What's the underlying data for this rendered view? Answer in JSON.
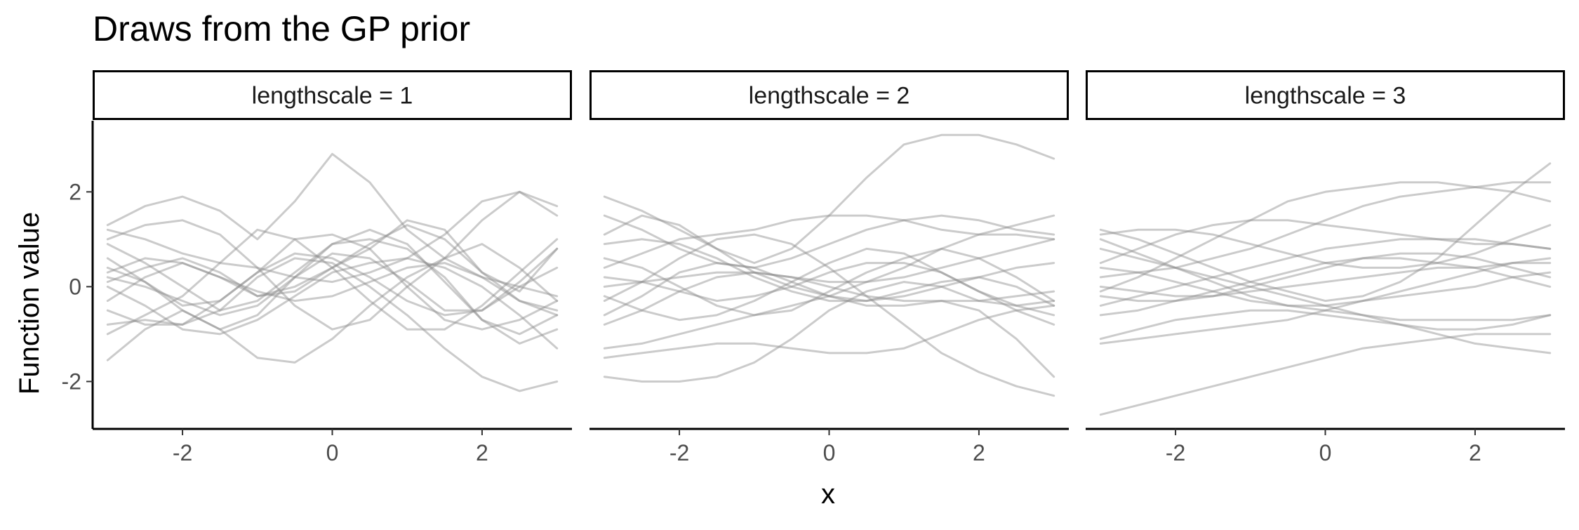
{
  "chart_data": {
    "type": "line",
    "title": "Draws from the GP prior",
    "xlabel": "x",
    "ylabel": "Function value",
    "xlim": [
      -3.2,
      3.2
    ],
    "ylim": [
      -3.0,
      3.5
    ],
    "x_ticks": [
      -2,
      0,
      2
    ],
    "y_ticks": [
      -2,
      0,
      2
    ],
    "line_color": "#8c8c8c",
    "line_opacity": 0.45,
    "grid": false,
    "legend": "none",
    "x": [
      -3,
      -2.5,
      -2,
      -1.5,
      -1,
      -0.5,
      0,
      0.5,
      1,
      1.5,
      2,
      2.5,
      3
    ],
    "panels": [
      {
        "strip_label": "lengthscale = 1",
        "series": [
          {
            "values": [
              1.3,
              1.7,
              1.9,
              1.6,
              1.0,
              1.8,
              2.8,
              2.2,
              1.2,
              0.6,
              0.2,
              0.0,
              -0.2
            ]
          },
          {
            "values": [
              0.1,
              0.4,
              0.6,
              0.3,
              -0.2,
              -0.1,
              0.4,
              0.9,
              1.3,
              1.0,
              0.3,
              -0.3,
              -0.6
            ]
          },
          {
            "values": [
              -1.55,
              -0.9,
              -0.5,
              -0.9,
              -1.5,
              -1.6,
              -1.1,
              -0.4,
              0.2,
              0.6,
              1.4,
              2.0,
              1.5
            ]
          },
          {
            "values": [
              -0.8,
              -0.7,
              -0.8,
              -0.5,
              0.2,
              0.6,
              0.5,
              0.0,
              -0.6,
              -1.3,
              -1.9,
              -2.2,
              -2.0
            ]
          },
          {
            "values": [
              0.6,
              0.1,
              -0.4,
              -0.3,
              0.3,
              1.0,
              1.1,
              0.8,
              0.0,
              -0.7,
              -0.9,
              -0.7,
              -0.3
            ]
          },
          {
            "values": [
              0.9,
              0.5,
              0.0,
              -0.5,
              -0.3,
              0.3,
              0.9,
              1.0,
              0.8,
              0.2,
              -0.7,
              -1.2,
              -0.9
            ]
          },
          {
            "values": [
              1.2,
              1.0,
              0.7,
              0.5,
              0.4,
              0.2,
              0.1,
              0.3,
              0.6,
              1.1,
              1.8,
              2.0,
              1.7
            ]
          },
          {
            "values": [
              0.0,
              -0.4,
              -0.9,
              -1.0,
              -0.7,
              -0.2,
              0.3,
              0.5,
              0.6,
              0.4,
              0.0,
              -0.6,
              -1.3
            ]
          },
          {
            "values": [
              0.3,
              0.6,
              0.5,
              0.2,
              -0.1,
              -0.3,
              -0.2,
              0.1,
              0.4,
              0.5,
              0.2,
              -0.3,
              -0.5
            ]
          },
          {
            "values": [
              -0.3,
              0.2,
              0.5,
              0.2,
              -0.2,
              0.0,
              0.4,
              0.8,
              1.4,
              1.2,
              0.3,
              -0.1,
              0.8
            ]
          },
          {
            "values": [
              0.2,
              0.0,
              -0.3,
              -0.6,
              -0.4,
              0.2,
              0.7,
              0.6,
              0.1,
              -0.5,
              -0.5,
              0.0,
              0.4
            ]
          },
          {
            "values": [
              -1.0,
              -0.6,
              -0.2,
              0.5,
              1.2,
              1.0,
              0.4,
              -0.3,
              -0.9,
              -0.9,
              -0.4,
              0.3,
              1.0
            ]
          },
          {
            "values": [
              1.0,
              1.3,
              1.4,
              1.1,
              0.4,
              -0.4,
              -0.9,
              -0.7,
              0.0,
              0.6,
              0.9,
              0.4,
              -0.3
            ]
          },
          {
            "values": [
              0.4,
              0.1,
              -0.5,
              -0.9,
              -0.6,
              0.2,
              0.9,
              1.2,
              0.9,
              0.1,
              -0.7,
              -1.0,
              -0.6
            ]
          },
          {
            "values": [
              -0.5,
              -0.8,
              -0.8,
              -0.3,
              0.3,
              0.7,
              0.6,
              0.2,
              -0.3,
              -0.6,
              -0.5,
              0.1,
              0.8
            ]
          }
        ]
      },
      {
        "strip_label": "lengthscale = 2",
        "series": [
          {
            "values": [
              1.9,
              1.6,
              1.2,
              0.8,
              0.5,
              0.8,
              1.5,
              2.3,
              3.0,
              3.2,
              3.2,
              3.0,
              2.7
            ]
          },
          {
            "values": [
              -1.9,
              -2.0,
              -2.0,
              -1.9,
              -1.6,
              -1.1,
              -0.5,
              -0.1,
              0.1,
              0.0,
              -0.3,
              -0.4,
              -0.3
            ]
          },
          {
            "values": [
              1.1,
              1.5,
              1.3,
              0.8,
              0.3,
              0.0,
              -0.2,
              -0.3,
              -0.2,
              0.0,
              0.2,
              0.4,
              0.5
            ]
          },
          {
            "values": [
              -0.3,
              0.1,
              0.6,
              1.0,
              1.1,
              0.9,
              0.4,
              -0.2,
              -0.8,
              -1.4,
              -1.8,
              -2.1,
              -2.3
            ]
          },
          {
            "values": [
              0.4,
              0.7,
              1.0,
              1.1,
              1.2,
              1.4,
              1.5,
              1.5,
              1.4,
              1.2,
              1.1,
              1.1,
              1.0
            ]
          },
          {
            "values": [
              -0.8,
              -0.5,
              -0.1,
              0.2,
              0.3,
              0.2,
              0.0,
              -0.2,
              -0.3,
              -0.3,
              -0.3,
              -0.2,
              -0.1
            ]
          },
          {
            "values": [
              0.6,
              0.4,
              0.0,
              -0.4,
              -0.6,
              -0.5,
              -0.1,
              0.3,
              0.6,
              0.8,
              0.6,
              0.2,
              -0.3
            ]
          },
          {
            "values": [
              -1.3,
              -1.2,
              -1.0,
              -0.8,
              -0.6,
              -0.4,
              -0.2,
              0.1,
              0.4,
              0.8,
              1.1,
              1.3,
              1.5
            ]
          },
          {
            "values": [
              0.2,
              0.1,
              -0.1,
              -0.3,
              -0.2,
              0.0,
              0.3,
              0.5,
              0.5,
              0.3,
              -0.1,
              -0.5,
              -0.8
            ]
          },
          {
            "values": [
              1.5,
              1.2,
              0.8,
              0.5,
              0.4,
              0.6,
              0.9,
              1.2,
              1.4,
              1.5,
              1.4,
              1.2,
              1.1
            ]
          },
          {
            "values": [
              -0.6,
              -0.2,
              0.3,
              0.5,
              0.4,
              0.1,
              -0.2,
              -0.4,
              -0.4,
              -0.3,
              -0.5,
              -1.1,
              -1.9
            ]
          },
          {
            "values": [
              0.9,
              1.0,
              0.9,
              0.6,
              0.2,
              -0.1,
              -0.3,
              -0.3,
              -0.1,
              0.1,
              0.2,
              0.0,
              -0.4
            ]
          },
          {
            "values": [
              -1.5,
              -1.4,
              -1.3,
              -1.2,
              -1.2,
              -1.3,
              -1.4,
              -1.4,
              -1.3,
              -1.0,
              -0.7,
              -0.5,
              -0.4
            ]
          },
          {
            "values": [
              0.0,
              0.1,
              0.2,
              0.3,
              0.3,
              0.2,
              0.1,
              0.1,
              0.2,
              0.4,
              0.6,
              0.8,
              1.0
            ]
          },
          {
            "values": [
              -0.2,
              -0.5,
              -0.7,
              -0.6,
              -0.3,
              0.1,
              0.5,
              0.8,
              0.7,
              0.3,
              -0.1,
              -0.4,
              -0.6
            ]
          }
        ]
      },
      {
        "strip_label": "lengthscale = 3",
        "series": [
          {
            "values": [
              -2.7,
              -2.5,
              -2.3,
              -2.1,
              -1.9,
              -1.7,
              -1.5,
              -1.3,
              -1.2,
              -1.1,
              -1.0,
              -1.0,
              -1.0
            ]
          },
          {
            "values": [
              -0.1,
              0.2,
              0.6,
              1.0,
              1.4,
              1.8,
              2.0,
              2.1,
              2.2,
              2.2,
              2.1,
              2.0,
              1.8
            ]
          },
          {
            "values": [
              1.2,
              1.0,
              0.7,
              0.4,
              0.1,
              -0.1,
              -0.3,
              -0.2,
              0.1,
              0.6,
              1.3,
              2.0,
              2.6
            ]
          },
          {
            "values": [
              0.5,
              0.8,
              1.1,
              1.3,
              1.4,
              1.4,
              1.3,
              1.2,
              1.1,
              1.0,
              0.9,
              0.9,
              0.8
            ]
          },
          {
            "values": [
              -1.2,
              -1.1,
              -1.0,
              -0.9,
              -0.8,
              -0.7,
              -0.5,
              -0.3,
              -0.1,
              0.1,
              0.3,
              0.5,
              0.6
            ]
          },
          {
            "values": [
              1.0,
              0.7,
              0.4,
              0.1,
              -0.2,
              -0.4,
              -0.5,
              -0.6,
              -0.7,
              -0.7,
              -0.7,
              -0.7,
              -0.6
            ]
          },
          {
            "values": [
              0.2,
              0.3,
              0.4,
              0.6,
              0.8,
              1.1,
              1.4,
              1.7,
              1.9,
              2.0,
              2.1,
              2.2,
              2.2
            ]
          },
          {
            "values": [
              -0.6,
              -0.5,
              -0.3,
              -0.1,
              0.1,
              0.3,
              0.5,
              0.6,
              0.6,
              0.5,
              0.4,
              0.2,
              0.0
            ]
          },
          {
            "values": [
              0.8,
              0.6,
              0.4,
              0.2,
              0.0,
              -0.2,
              -0.4,
              -0.6,
              -0.8,
              -1.0,
              -1.2,
              -1.3,
              -1.4
            ]
          },
          {
            "values": [
              -0.4,
              -0.2,
              0.0,
              0.2,
              0.4,
              0.6,
              0.8,
              0.9,
              1.0,
              1.0,
              1.0,
              0.9,
              0.8
            ]
          },
          {
            "values": [
              0.0,
              -0.1,
              -0.2,
              -0.2,
              -0.1,
              0.0,
              0.1,
              0.2,
              0.3,
              0.4,
              0.4,
              0.5,
              0.5
            ]
          },
          {
            "values": [
              -1.1,
              -0.9,
              -0.7,
              -0.6,
              -0.5,
              -0.5,
              -0.6,
              -0.7,
              -0.8,
              -0.9,
              -0.9,
              -0.8,
              -0.6
            ]
          },
          {
            "values": [
              1.1,
              1.2,
              1.2,
              1.1,
              0.9,
              0.7,
              0.5,
              0.4,
              0.4,
              0.5,
              0.7,
              1.0,
              1.3
            ]
          },
          {
            "values": [
              0.4,
              0.3,
              0.1,
              -0.1,
              -0.3,
              -0.4,
              -0.4,
              -0.3,
              -0.2,
              -0.1,
              0.0,
              0.2,
              0.3
            ]
          },
          {
            "values": [
              -0.2,
              -0.3,
              -0.3,
              -0.2,
              0.0,
              0.2,
              0.4,
              0.6,
              0.7,
              0.7,
              0.6,
              0.4,
              0.2
            ]
          }
        ]
      }
    ]
  }
}
